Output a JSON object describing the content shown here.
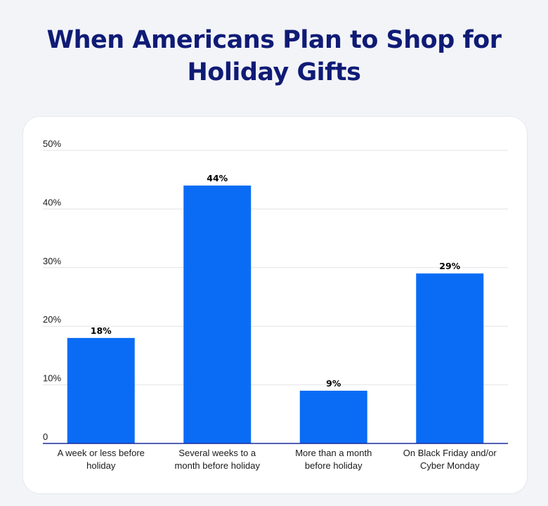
{
  "colors": {
    "title": "#0f1b75",
    "bar": "#0a6cf5",
    "grid": "#e3e3e8",
    "axis": "#1a2b9c"
  },
  "chart_data": {
    "type": "bar",
    "title_lines": [
      "When Americans Plan to Shop for",
      "Holiday Gifts"
    ],
    "categories": [
      [
        "A week or less before",
        "holiday"
      ],
      [
        "Several weeks to a",
        "month before holiday"
      ],
      [
        "More than a month",
        "before holiday"
      ],
      [
        "On Black Friday and/or",
        "Cyber Monday"
      ]
    ],
    "values": [
      18,
      44,
      9,
      29
    ],
    "value_labels": [
      "18%",
      "44%",
      "9%",
      "29%"
    ],
    "yticks": [
      0,
      10,
      20,
      30,
      40,
      50
    ],
    "ytick_labels": [
      "0",
      "10%",
      "20%",
      "30%",
      "40%",
      "50%"
    ],
    "ylim": [
      0,
      50
    ],
    "grid": true,
    "legend": "none"
  }
}
